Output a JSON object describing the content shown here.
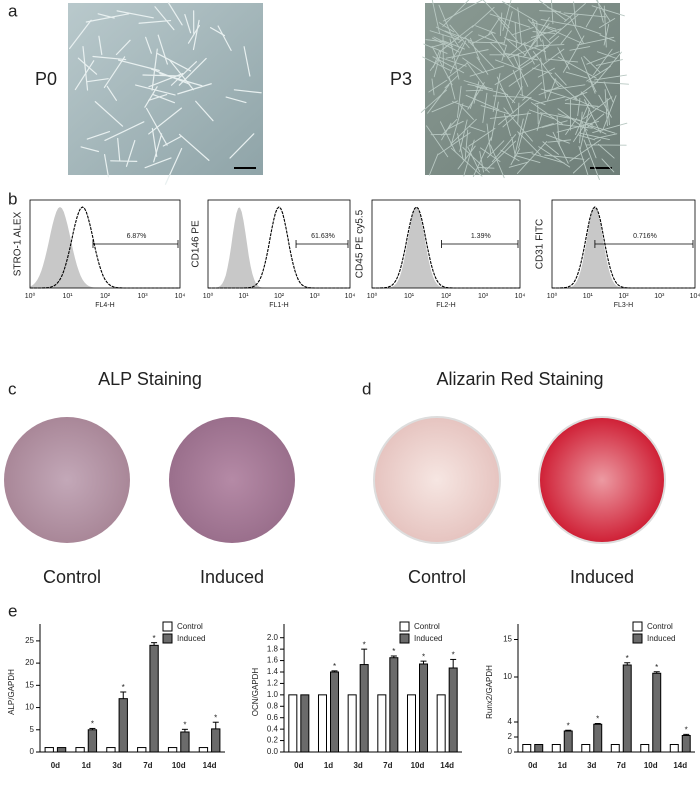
{
  "figure": {
    "panel_a": {
      "letter": "a",
      "images": [
        {
          "label": "P0"
        },
        {
          "label": "P3"
        }
      ]
    },
    "panel_b": {
      "letter": "b",
      "xtick_labels": [
        "10⁰",
        "10¹",
        "10²",
        "10³",
        "10⁴"
      ],
      "plots": [
        {
          "ylabel": "STRO-1 ALEX",
          "xlabel": "FL4-H",
          "gate": "6.87%"
        },
        {
          "ylabel": "CD146 PE",
          "xlabel": "FL1-H",
          "gate": "61.63%"
        },
        {
          "ylabel": "CD45 PE cy5.5",
          "xlabel": "FL2-H",
          "gate": "1.39%"
        },
        {
          "ylabel": "CD31 FITC",
          "xlabel": "FL3-H",
          "gate": "0.716%"
        }
      ]
    },
    "panel_c": {
      "letter": "c",
      "title": "ALP Staining",
      "wells": [
        "Control",
        "Induced"
      ]
    },
    "panel_d": {
      "letter": "d",
      "title": "Alizarin Red Staining",
      "wells": [
        "Control",
        "Induced"
      ]
    },
    "panel_e": {
      "letter": "e"
    }
  },
  "chart_data": [
    {
      "type": "bar",
      "ylabel": "ALP/GAPDH",
      "categories": [
        "0d",
        "1d",
        "3d",
        "7d",
        "10d",
        "14d"
      ],
      "series": [
        {
          "name": "Control",
          "color": "#ffffff",
          "values": [
            1,
            1,
            1,
            1,
            1,
            1
          ]
        },
        {
          "name": "Induced",
          "color": "#6b6b6b",
          "values": [
            1,
            5,
            12,
            24,
            4.5,
            5.2
          ],
          "errors": [
            null,
            0.3,
            1.5,
            0.6,
            0.6,
            1.5
          ],
          "annotations": [
            null,
            "*",
            "*",
            "*",
            "*",
            "*"
          ]
        }
      ],
      "ylim": [
        0,
        27
      ],
      "yticks": [
        0,
        5,
        10,
        15,
        20,
        25
      ]
    },
    {
      "type": "bar",
      "ylabel": "OCN/GAPDH",
      "categories": [
        "0d",
        "1d",
        "3d",
        "7d",
        "10d",
        "14d"
      ],
      "series": [
        {
          "name": "Control",
          "color": "#ffffff",
          "values": [
            1,
            1,
            1,
            1,
            1,
            1
          ]
        },
        {
          "name": "Induced",
          "color": "#6b6b6b",
          "values": [
            1,
            1.4,
            1.53,
            1.65,
            1.54,
            1.47
          ],
          "errors": [
            null,
            0.02,
            0.27,
            0.03,
            0.05,
            0.15
          ],
          "annotations": [
            null,
            "*",
            "*",
            "*",
            "*",
            "*"
          ]
        }
      ],
      "ylim": [
        0,
        2.1
      ],
      "yticks": [
        {
          "value": 0,
          "label": "0.0"
        },
        {
          "value": 0.2,
          "label": "0.2"
        },
        {
          "value": 0.4,
          "label": "0.4"
        },
        {
          "value": 0.6,
          "label": "0.6"
        },
        {
          "value": 0.8,
          "label": "0.8"
        },
        {
          "value": 1,
          "label": "1.0"
        },
        {
          "value": 1.2,
          "label": "1.2"
        },
        {
          "value": 1.4,
          "label": "1.4"
        },
        {
          "value": 1.6,
          "label": "1.6"
        },
        {
          "value": 1.8,
          "label": "1.8"
        },
        {
          "value": 2,
          "label": "2.0"
        }
      ]
    },
    {
      "type": "bar",
      "ylabel": "Runx2/GAPDH",
      "categories": [
        "0d",
        "1d",
        "3d",
        "7d",
        "10d",
        "14d"
      ],
      "series": [
        {
          "name": "Control",
          "color": "#ffffff",
          "values": [
            1,
            1,
            1,
            1,
            1,
            1
          ]
        },
        {
          "name": "Induced",
          "color": "#6b6b6b",
          "values": [
            1,
            2.8,
            3.7,
            11.6,
            10.5,
            2.2
          ],
          "errors": [
            null,
            0.1,
            0.1,
            0.3,
            0.2,
            0.15
          ],
          "annotations": [
            null,
            "*",
            "*",
            "*",
            "*",
            "*"
          ]
        }
      ],
      "ylim": [
        0,
        16
      ],
      "yticks": [
        0,
        2,
        4,
        10,
        15
      ]
    }
  ]
}
